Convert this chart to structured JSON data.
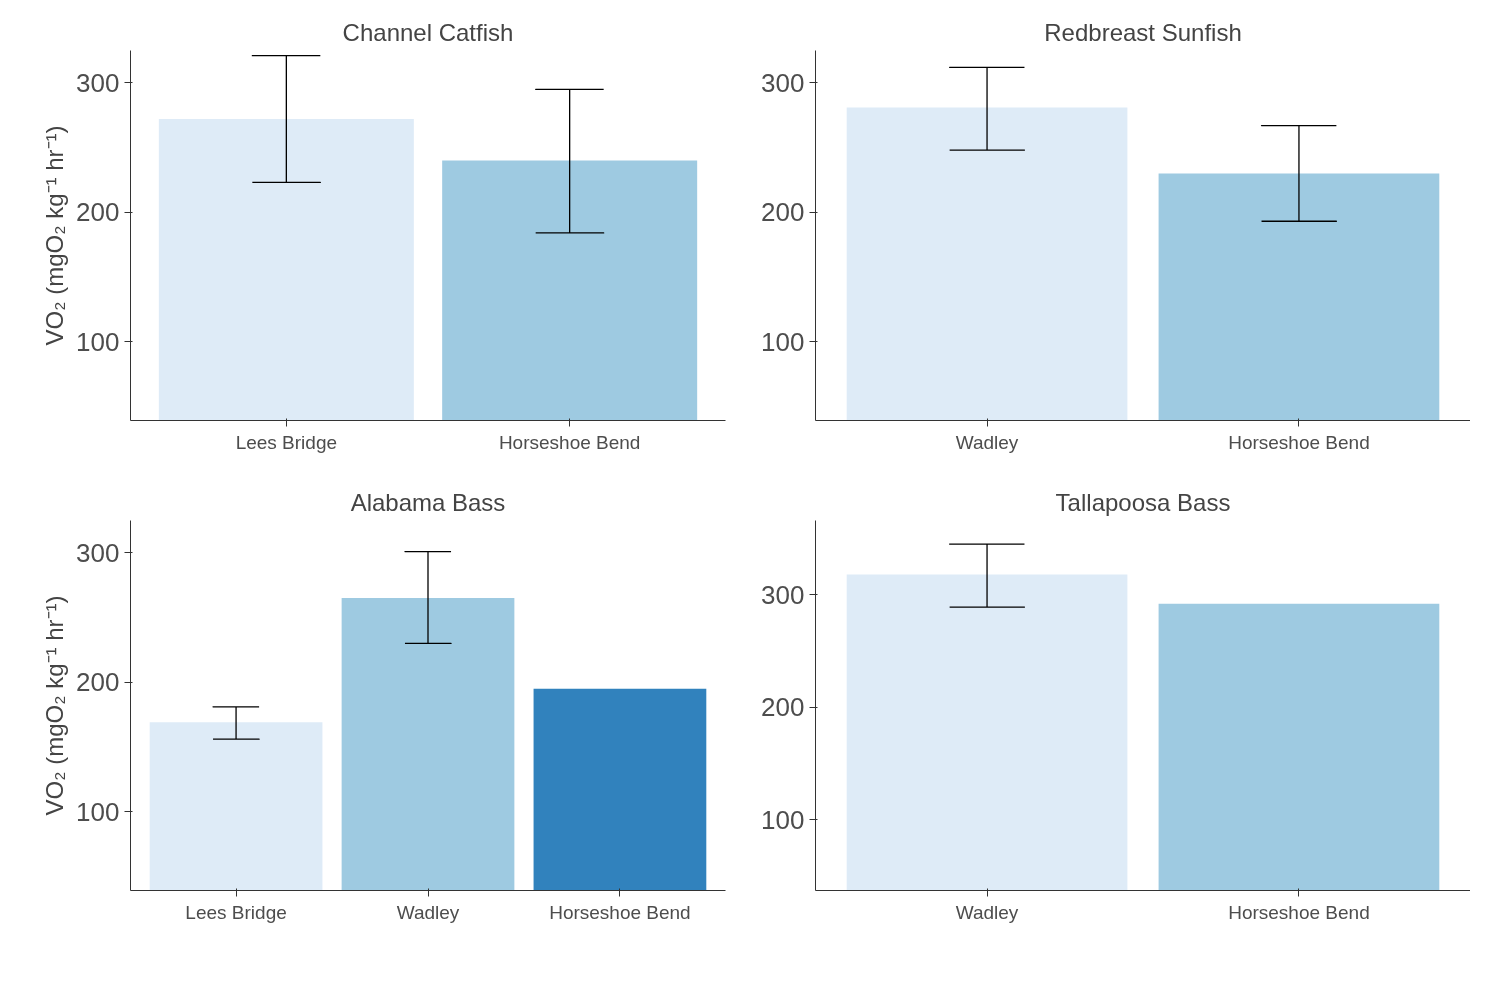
{
  "chart_data": [
    {
      "type": "bar",
      "title": "Channel Catfish",
      "ylabel": "VO₂ (mgO₂ kg⁻¹ hr⁻¹)",
      "categories": [
        "Lees Bridge",
        "Horseshoe Bend"
      ],
      "values": [
        272,
        240
      ],
      "colors": [
        "#deebf7",
        "#9ecae1"
      ],
      "errors": [
        [
          223,
          321
        ],
        [
          184,
          295
        ]
      ],
      "ylim": [
        39,
        325
      ],
      "yticks": [
        100,
        200,
        300
      ]
    },
    {
      "type": "bar",
      "title": "Redbreast Sunfish",
      "categories": [
        "Wadley",
        "Horseshoe Bend"
      ],
      "values": [
        281,
        230
      ],
      "colors": [
        "#deebf7",
        "#9ecae1"
      ],
      "errors": [
        [
          248,
          312
        ],
        [
          193,
          267
        ]
      ],
      "ylim": [
        39,
        325
      ],
      "yticks": [
        100,
        200,
        300
      ]
    },
    {
      "type": "bar",
      "title": "Alabama Bass",
      "ylabel": "VO₂ (mgO₂ kg⁻¹ hr⁻¹)",
      "categories": [
        "Lees Bridge",
        "Wadley",
        "Horseshoe Bend"
      ],
      "values": [
        169,
        265,
        195
      ],
      "colors": [
        "#deebf7",
        "#9ecae1",
        "#3182bd"
      ],
      "errors": [
        [
          156,
          181
        ],
        [
          230,
          301
        ],
        null
      ],
      "ylim": [
        39,
        325
      ],
      "yticks": [
        100,
        200,
        300
      ]
    },
    {
      "type": "bar",
      "title": "Tallapoosa Bass",
      "categories": [
        "Wadley",
        "Horseshoe Bend"
      ],
      "values": [
        318,
        292
      ],
      "colors": [
        "#deebf7",
        "#9ecae1"
      ],
      "errors": [
        [
          289,
          345
        ],
        null
      ],
      "ylim": [
        37,
        366
      ],
      "yticks": [
        100,
        200,
        300
      ]
    }
  ]
}
